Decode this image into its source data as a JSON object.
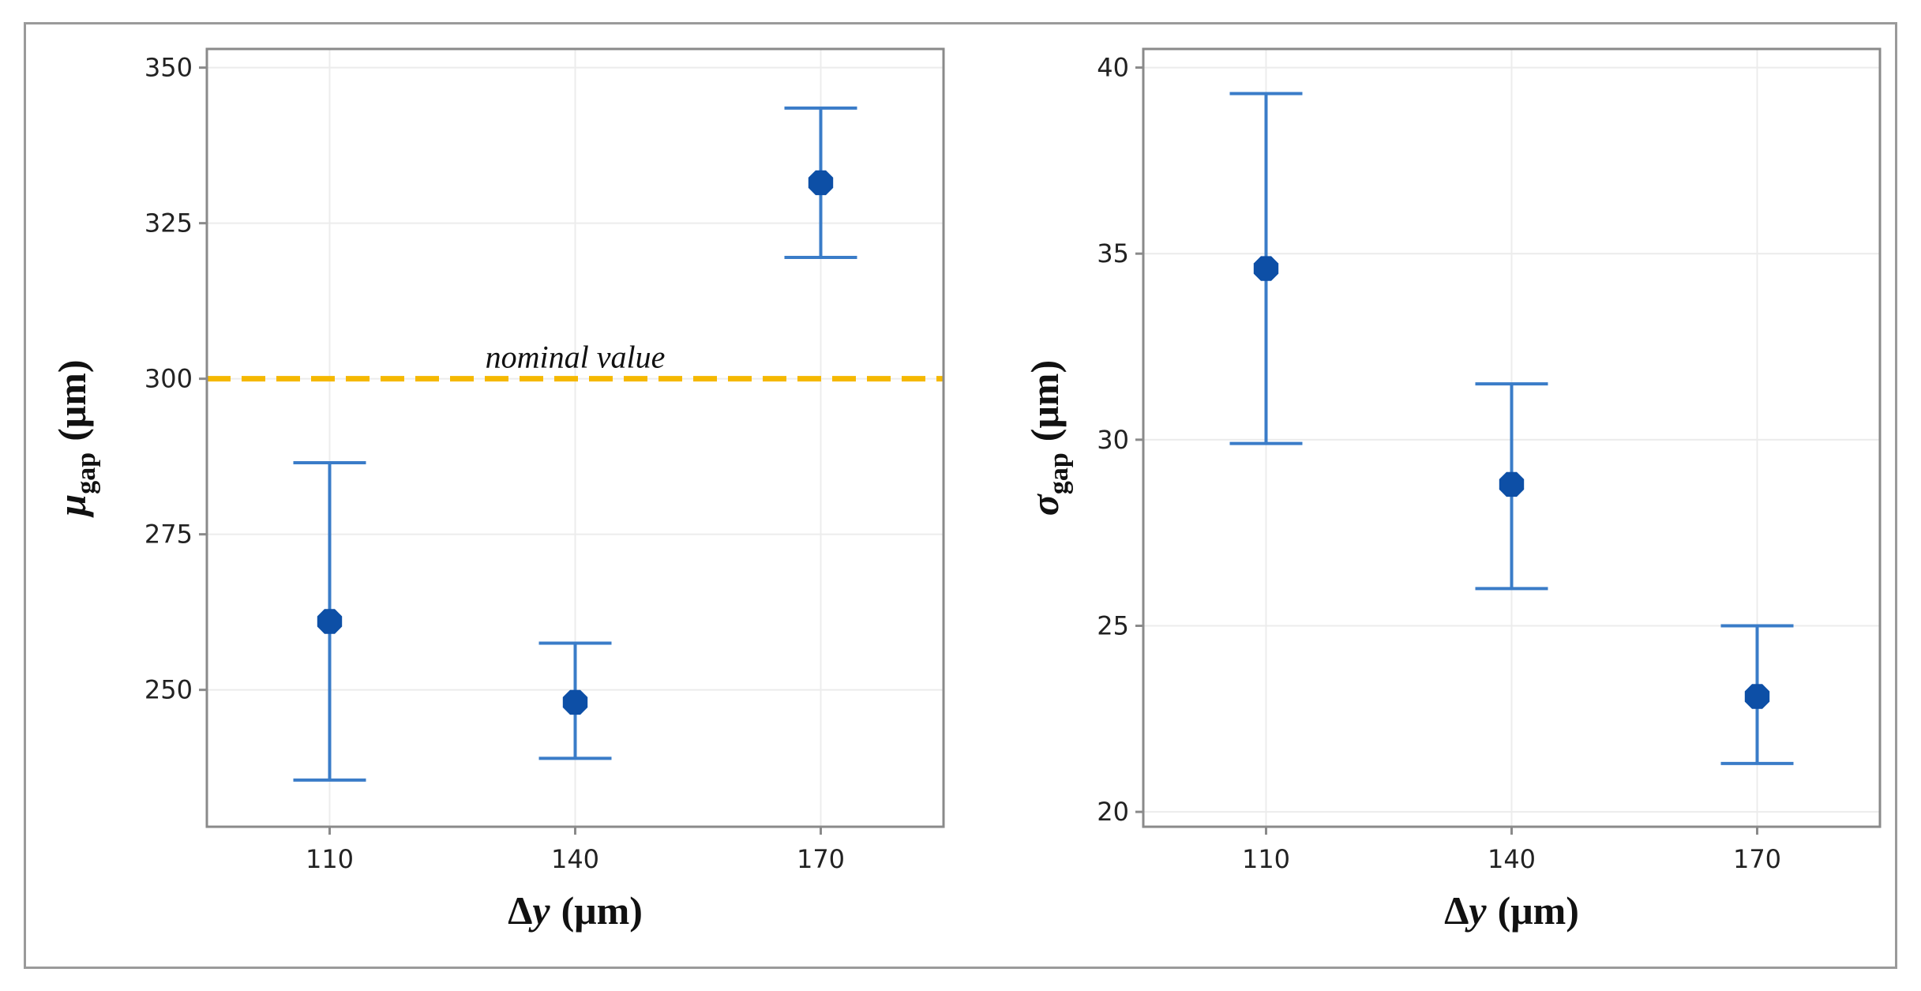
{
  "chart_data": [
    {
      "type": "scatter",
      "subtype": "point-with-errorbars",
      "categories": [
        "110",
        "140",
        "170"
      ],
      "series": [
        {
          "name": "mu_gap",
          "values": [
            261,
            248,
            331.5
          ],
          "lower": [
            235.5,
            239,
            319.5
          ],
          "upper": [
            286.5,
            257.5,
            343.5
          ]
        }
      ],
      "ylim": [
        228,
        353
      ],
      "yticks": [
        250,
        275,
        300,
        325,
        350
      ],
      "ylabel_main": "μ",
      "ylabel_sub": "gap",
      "ylabel_unit": "(μm)",
      "xlabel_delta": "Δ",
      "xlabel_var": "y",
      "xlabel_unit": "(μm)",
      "reference_line": {
        "value": 300,
        "label": "nominal value",
        "color": "#F5B800"
      },
      "grid": true,
      "marker_color": "#0D4FA6",
      "errorbar_color": "#3A7CC8"
    },
    {
      "type": "scatter",
      "subtype": "point-with-errorbars",
      "categories": [
        "110",
        "140",
        "170"
      ],
      "series": [
        {
          "name": "sigma_gap",
          "values": [
            34.6,
            28.8,
            23.1
          ],
          "lower": [
            29.9,
            26,
            21.3
          ],
          "upper": [
            39.3,
            31.5,
            25
          ]
        }
      ],
      "ylim": [
        19.6,
        40.5
      ],
      "yticks": [
        20,
        25,
        30,
        35,
        40
      ],
      "ylabel_main": "σ",
      "ylabel_sub": "gap",
      "ylabel_unit": "(μm)",
      "xlabel_delta": "Δ",
      "xlabel_var": "y",
      "xlabel_unit": "(μm)",
      "grid": true,
      "marker_color": "#0D4FA6",
      "errorbar_color": "#3A7CC8"
    }
  ]
}
